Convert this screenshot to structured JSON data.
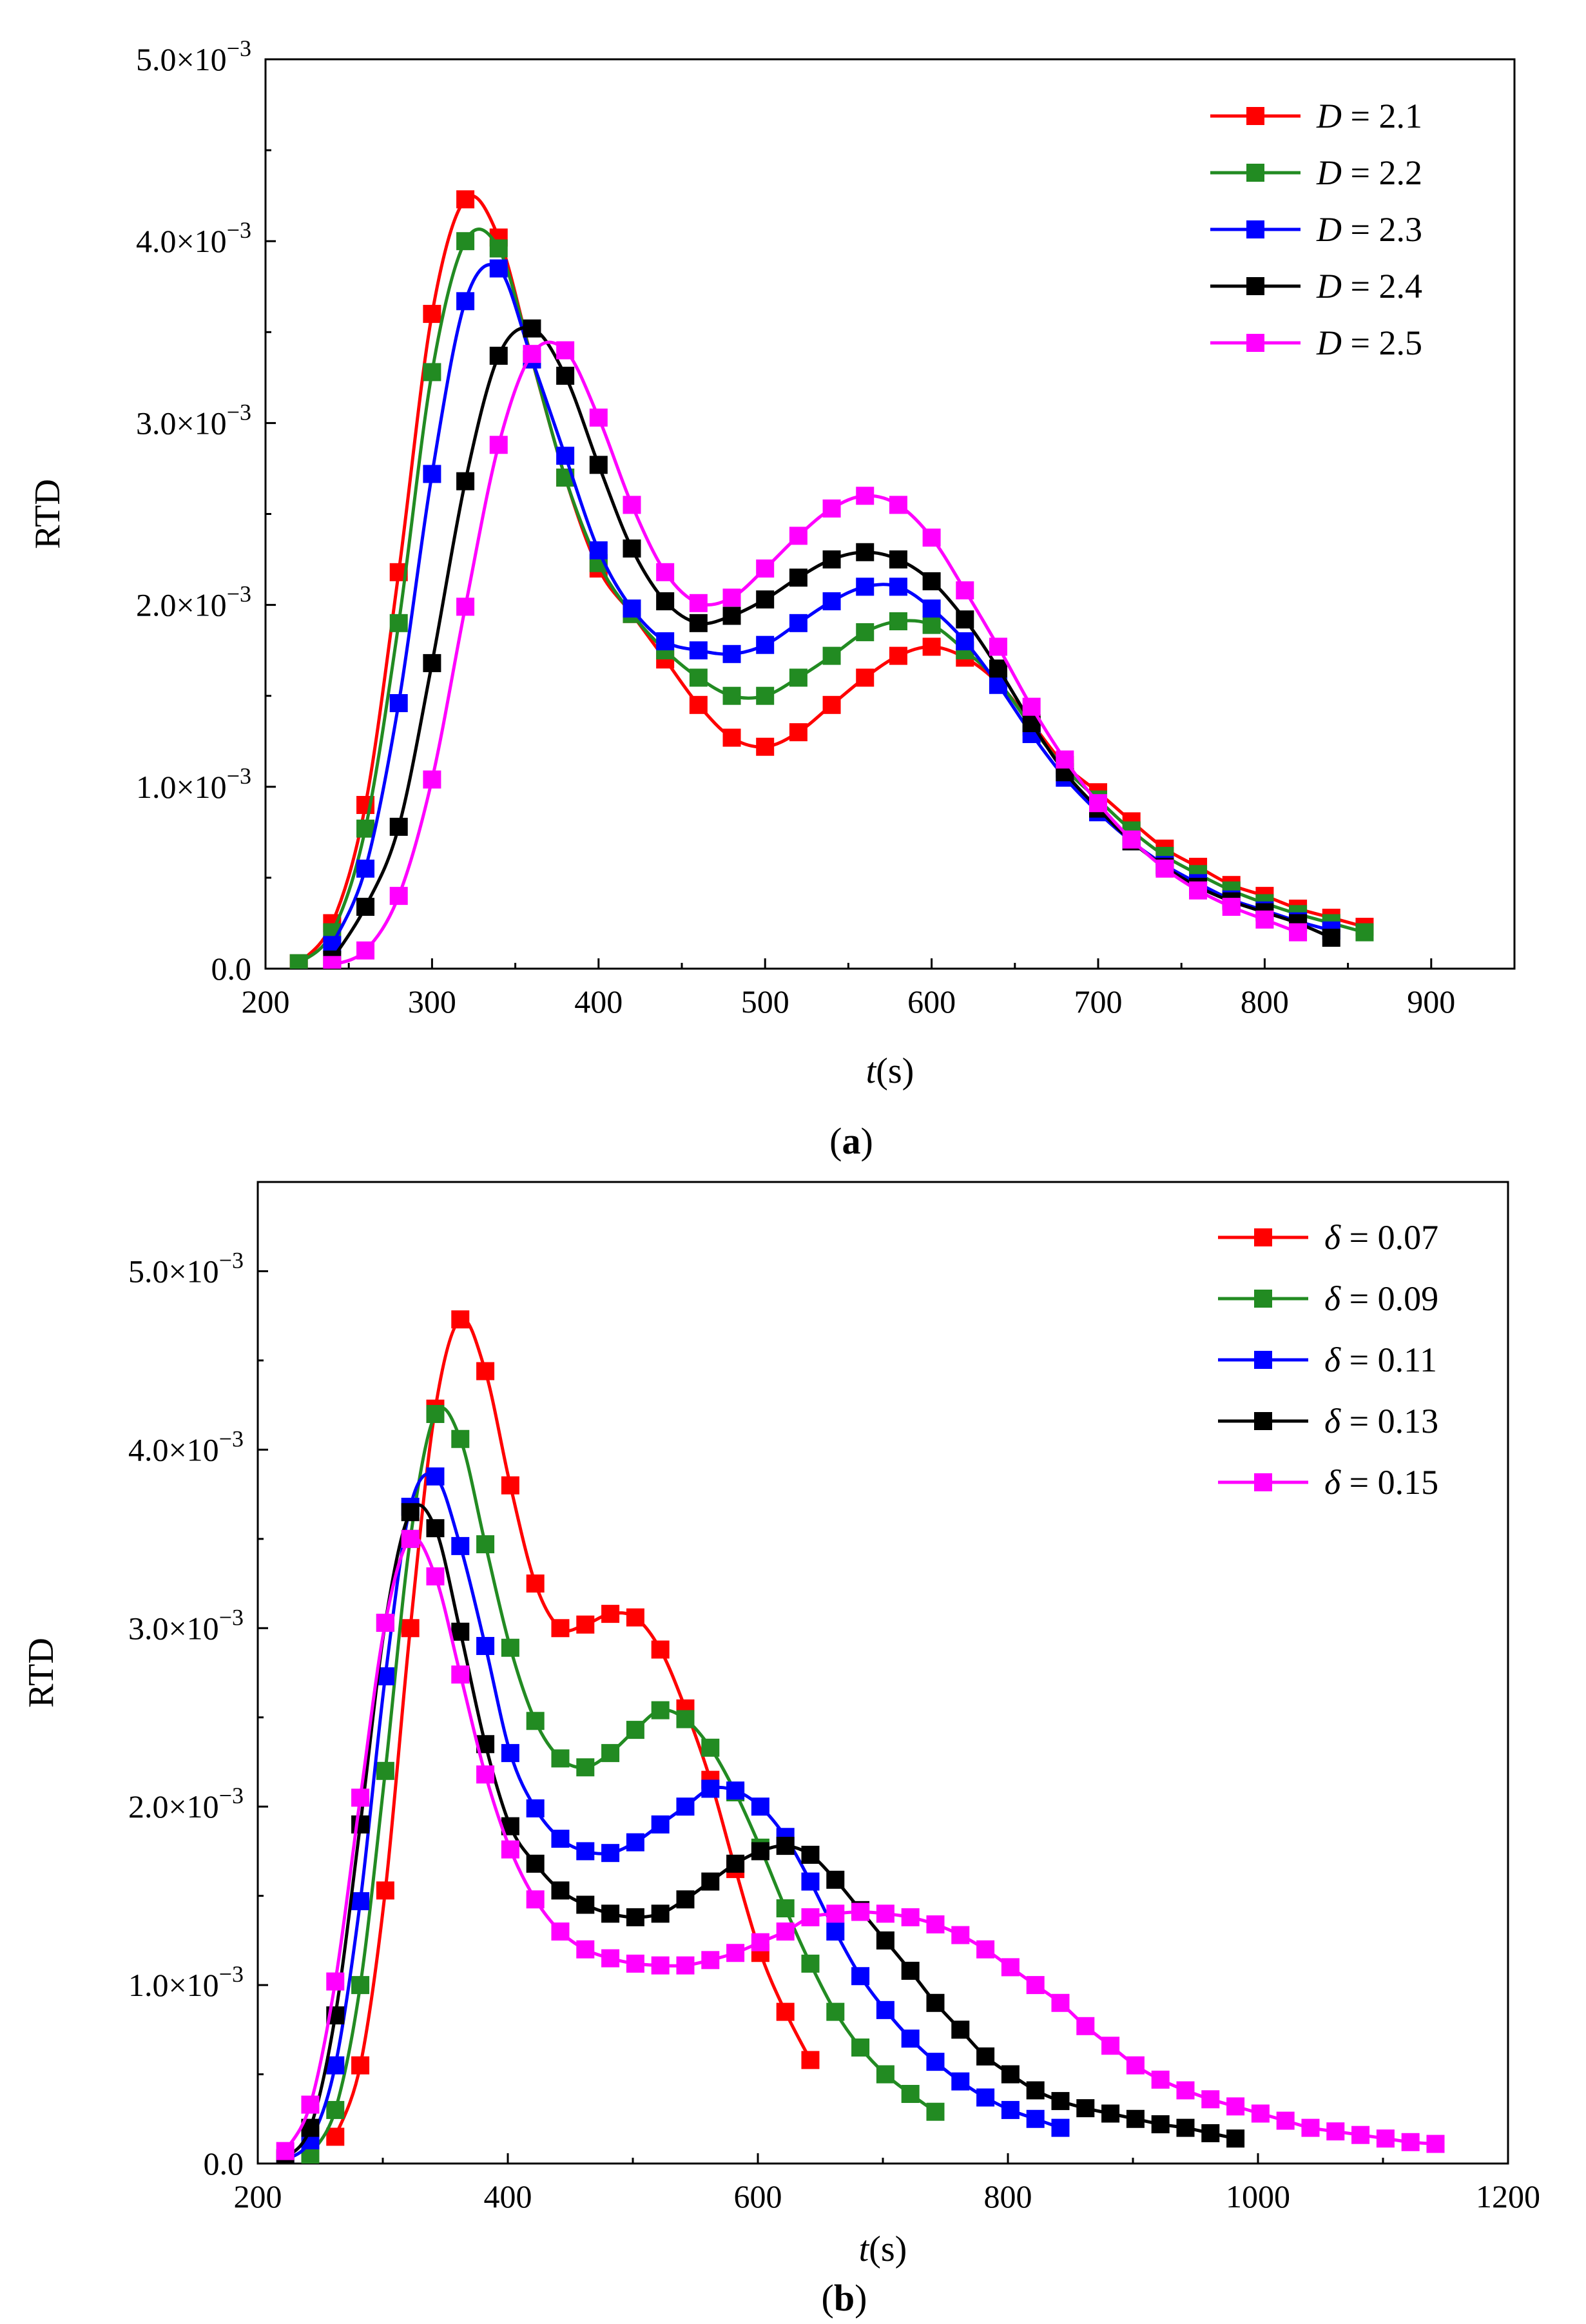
{
  "chart_data": [
    {
      "type": "line",
      "panel": "a",
      "caption": "(a)",
      "xlabel_italic": "t",
      "xlabel_rest": "(s)",
      "ylabel": "RTD",
      "xlim": [
        200,
        950
      ],
      "ylim": [
        0,
        0.005
      ],
      "xticks": [
        200,
        300,
        400,
        500,
        600,
        700,
        800,
        900
      ],
      "xtick_labels": [
        "200",
        "300",
        "400",
        "500",
        "600",
        "700",
        "800",
        "900"
      ],
      "yticks": [
        0,
        0.001,
        0.002,
        0.003,
        0.004,
        0.005
      ],
      "ytick_mantissa": [
        "0.0",
        "1.0×10",
        "2.0×10",
        "3.0×10",
        "4.0×10",
        "5.0×10"
      ],
      "ytick_exponent": [
        "",
        "−3",
        "−3",
        "−3",
        "−3",
        "−3"
      ],
      "legend_position": "top-right",
      "series": [
        {
          "name": "D",
          "label_value": "2.1",
          "color": "#ff0000",
          "x": [
            220,
            240,
            260,
            280,
            300,
            320,
            340,
            360,
            380,
            400,
            420,
            440,
            460,
            480,
            500,
            520,
            540,
            560,
            580,
            600,
            620,
            640,
            660,
            680,
            700,
            720,
            740,
            760,
            780,
            800,
            820,
            840,
            860
          ],
          "y": [
            3e-05,
            0.00025,
            0.0009,
            0.00218,
            0.0036,
            0.00423,
            0.00402,
            0.00335,
            0.0027,
            0.0022,
            0.00195,
            0.0017,
            0.00145,
            0.00127,
            0.00122,
            0.0013,
            0.00145,
            0.0016,
            0.00172,
            0.00177,
            0.00171,
            0.00157,
            0.00135,
            0.00112,
            0.00097,
            0.00081,
            0.00066,
            0.00056,
            0.00046,
            0.0004,
            0.00033,
            0.00028,
            0.00023
          ]
        },
        {
          "name": "D",
          "label_value": "2.2",
          "color": "#228b22",
          "x": [
            220,
            240,
            260,
            280,
            300,
            320,
            340,
            360,
            380,
            400,
            420,
            440,
            460,
            480,
            500,
            520,
            540,
            560,
            580,
            600,
            620,
            640,
            660,
            680,
            700,
            720,
            740,
            760,
            780,
            800,
            820,
            840,
            860
          ],
          "y": [
            3e-05,
            0.0002,
            0.00077,
            0.0019,
            0.00328,
            0.004,
            0.00396,
            0.00335,
            0.0027,
            0.00223,
            0.00195,
            0.00175,
            0.0016,
            0.0015,
            0.0015,
            0.0016,
            0.00172,
            0.00185,
            0.00191,
            0.00189,
            0.00175,
            0.00158,
            0.00133,
            0.0011,
            0.00093,
            0.00076,
            0.00062,
            0.00052,
            0.00043,
            0.00036,
            0.0003,
            0.00025,
            0.0002
          ]
        },
        {
          "name": "D",
          "label_value": "2.3",
          "color": "#0000ff",
          "x": [
            240,
            260,
            280,
            300,
            320,
            340,
            360,
            380,
            400,
            420,
            440,
            460,
            480,
            500,
            520,
            540,
            560,
            580,
            600,
            620,
            640,
            660,
            680,
            700,
            720,
            740,
            760,
            780,
            800,
            820,
            840
          ],
          "y": [
            0.00013,
            0.00055,
            0.00146,
            0.00272,
            0.00367,
            0.00385,
            0.00335,
            0.00282,
            0.0023,
            0.00198,
            0.0018,
            0.00175,
            0.00173,
            0.00178,
            0.0019,
            0.00202,
            0.0021,
            0.0021,
            0.00198,
            0.0018,
            0.00156,
            0.00129,
            0.00105,
            0.00086,
            0.0007,
            0.00057,
            0.00047,
            0.00038,
            0.00032,
            0.00026,
            0.00021
          ]
        },
        {
          "name": "D",
          "label_value": "2.4",
          "color": "#000000",
          "x": [
            240,
            260,
            280,
            300,
            320,
            340,
            360,
            380,
            400,
            420,
            440,
            460,
            480,
            500,
            520,
            540,
            560,
            580,
            600,
            620,
            640,
            660,
            680,
            700,
            720,
            740,
            760,
            780,
            800,
            820,
            840
          ],
          "y": [
            5e-05,
            0.00034,
            0.00078,
            0.00168,
            0.00268,
            0.00337,
            0.00352,
            0.00326,
            0.00277,
            0.00231,
            0.00202,
            0.0019,
            0.00194,
            0.00203,
            0.00215,
            0.00225,
            0.00229,
            0.00225,
            0.00213,
            0.00192,
            0.00165,
            0.00135,
            0.00108,
            0.00088,
            0.0007,
            0.00056,
            0.00045,
            0.00037,
            0.00031,
            0.00025,
            0.00017
          ]
        },
        {
          "name": "D",
          "label_value": "2.5",
          "color": "#ff00ff",
          "x": [
            240,
            260,
            280,
            300,
            320,
            340,
            360,
            380,
            400,
            420,
            440,
            460,
            480,
            500,
            520,
            540,
            560,
            580,
            600,
            620,
            640,
            660,
            680,
            700,
            720,
            740,
            760,
            780,
            800,
            820
          ],
          "y": [
            2e-05,
            0.0001,
            0.0004,
            0.00104,
            0.00199,
            0.00288,
            0.00338,
            0.0034,
            0.00303,
            0.00255,
            0.00218,
            0.00201,
            0.00204,
            0.0022,
            0.00238,
            0.00253,
            0.0026,
            0.00255,
            0.00237,
            0.00208,
            0.00177,
            0.00144,
            0.00115,
            0.00091,
            0.00071,
            0.00055,
            0.00043,
            0.00034,
            0.00027,
            0.0002
          ]
        }
      ]
    },
    {
      "type": "line",
      "panel": "b",
      "caption": "(b)",
      "xlabel_italic": "t",
      "xlabel_rest": "(s)",
      "ylabel": "RTD",
      "xlim": [
        200,
        1200
      ],
      "ylim": [
        0,
        0.0055
      ],
      "xticks": [
        200,
        400,
        600,
        800,
        1000,
        1200
      ],
      "xtick_labels": [
        "200",
        "400",
        "600",
        "800",
        "1000",
        "1200"
      ],
      "yticks": [
        0,
        0.001,
        0.002,
        0.003,
        0.004,
        0.005
      ],
      "ytick_mantissa": [
        "0.0",
        "1.0×10",
        "2.0×10",
        "3.0×10",
        "4.0×10",
        "5.0×10"
      ],
      "ytick_exponent": [
        "",
        "−3",
        "−3",
        "−3",
        "−3",
        "−3"
      ],
      "legend_position": "top-right",
      "series": [
        {
          "name": "δ",
          "label_value": "0.07",
          "color": "#ff0000",
          "x": [
            262,
            282,
            302,
            322,
            342,
            362,
            382,
            402,
            422,
            442,
            462,
            482,
            502,
            522,
            542,
            562,
            582,
            602,
            622,
            642
          ],
          "y": [
            0.00015,
            0.00055,
            0.00153,
            0.003,
            0.00423,
            0.00473,
            0.00444,
            0.0038,
            0.00325,
            0.003,
            0.00302,
            0.00308,
            0.00306,
            0.00288,
            0.00255,
            0.00215,
            0.00165,
            0.00118,
            0.00085,
            0.00058
          ]
        },
        {
          "name": "δ",
          "label_value": "0.09",
          "color": "#228b22",
          "x": [
            242,
            262,
            282,
            302,
            322,
            342,
            362,
            382,
            402,
            422,
            442,
            462,
            482,
            502,
            522,
            542,
            562,
            582,
            602,
            622,
            642,
            662,
            682,
            702,
            722,
            742
          ],
          "y": [
            5e-05,
            0.0003,
            0.001,
            0.0022,
            0.0035,
            0.0042,
            0.00406,
            0.00347,
            0.00289,
            0.00248,
            0.00227,
            0.00222,
            0.0023,
            0.00243,
            0.00254,
            0.00249,
            0.00233,
            0.00208,
            0.00177,
            0.00143,
            0.00112,
            0.00085,
            0.00065,
            0.0005,
            0.00039,
            0.00029
          ]
        },
        {
          "name": "δ",
          "label_value": "0.11",
          "color": "#0000ff",
          "x": [
            222,
            242,
            262,
            282,
            302,
            322,
            342,
            362,
            382,
            402,
            422,
            442,
            462,
            482,
            502,
            522,
            542,
            562,
            582,
            602,
            622,
            642,
            662,
            682,
            702,
            722,
            742,
            762,
            782,
            802,
            822,
            842
          ],
          "y": [
            2e-05,
            0.00013,
            0.00055,
            0.00147,
            0.00273,
            0.00368,
            0.00385,
            0.00346,
            0.0029,
            0.0023,
            0.00199,
            0.00182,
            0.00175,
            0.00174,
            0.0018,
            0.0019,
            0.002,
            0.0021,
            0.00209,
            0.002,
            0.00183,
            0.00158,
            0.0013,
            0.00105,
            0.00086,
            0.0007,
            0.00057,
            0.00046,
            0.00037,
            0.0003,
            0.00025,
            0.0002
          ]
        },
        {
          "name": "δ",
          "label_value": "0.13",
          "color": "#000000",
          "x": [
            222,
            242,
            262,
            282,
            302,
            322,
            342,
            362,
            382,
            402,
            422,
            442,
            462,
            482,
            502,
            522,
            542,
            562,
            582,
            602,
            622,
            642,
            662,
            682,
            702,
            722,
            742,
            762,
            782,
            802,
            822,
            842,
            862,
            882,
            902,
            922,
            942,
            962,
            982
          ],
          "y": [
            3e-05,
            0.0002,
            0.00083,
            0.0019,
            0.00303,
            0.00365,
            0.00356,
            0.00298,
            0.00235,
            0.00189,
            0.00168,
            0.00153,
            0.00145,
            0.0014,
            0.00138,
            0.0014,
            0.00148,
            0.00158,
            0.00168,
            0.00175,
            0.00178,
            0.00173,
            0.00159,
            0.00142,
            0.00125,
            0.00108,
            0.0009,
            0.00075,
            0.0006,
            0.0005,
            0.00041,
            0.00035,
            0.00031,
            0.00028,
            0.00025,
            0.00022,
            0.0002,
            0.00017,
            0.00014
          ]
        },
        {
          "name": "δ",
          "label_value": "0.15",
          "color": "#ff00ff",
          "x": [
            222,
            242,
            262,
            282,
            302,
            322,
            342,
            362,
            382,
            402,
            422,
            442,
            462,
            482,
            502,
            522,
            542,
            562,
            582,
            602,
            622,
            642,
            662,
            682,
            702,
            722,
            742,
            762,
            782,
            802,
            822,
            842,
            862,
            882,
            902,
            922,
            942,
            962,
            982,
            1002,
            1022,
            1042,
            1062,
            1082,
            1102,
            1122,
            1142
          ],
          "y": [
            7e-05,
            0.00033,
            0.00102,
            0.00205,
            0.00303,
            0.0035,
            0.00329,
            0.00274,
            0.00218,
            0.00176,
            0.00148,
            0.0013,
            0.0012,
            0.00115,
            0.00112,
            0.00111,
            0.00111,
            0.00114,
            0.00118,
            0.00124,
            0.0013,
            0.00138,
            0.0014,
            0.00141,
            0.0014,
            0.00138,
            0.00134,
            0.00128,
            0.0012,
            0.0011,
            0.001,
            0.0009,
            0.00077,
            0.00066,
            0.00055,
            0.00047,
            0.00041,
            0.00036,
            0.00032,
            0.00028,
            0.00024,
            0.0002,
            0.00018,
            0.00016,
            0.00014,
            0.00012,
            0.00011
          ]
        }
      ]
    }
  ]
}
